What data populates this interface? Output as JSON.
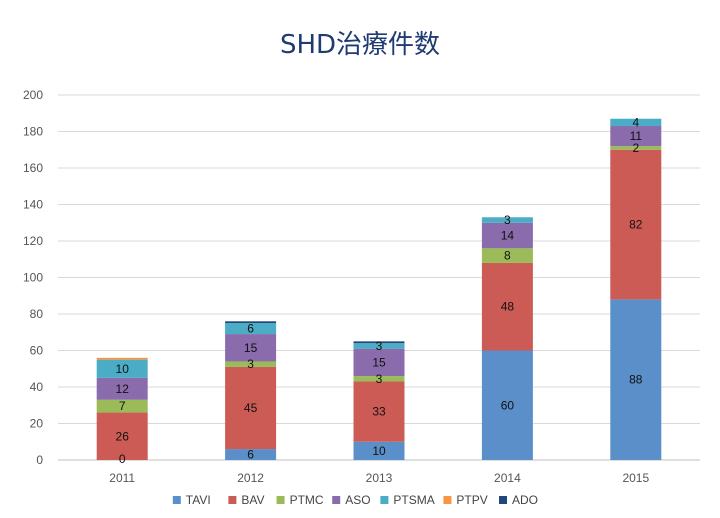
{
  "chart_data": {
    "type": "bar",
    "stacked": true,
    "title": "SHD治療件数",
    "xlabel": "",
    "ylabel": "",
    "categories": [
      "2011",
      "2012",
      "2013",
      "2014",
      "2015"
    ],
    "ylim": [
      0,
      200
    ],
    "yticks": [
      0,
      20,
      40,
      60,
      80,
      100,
      120,
      140,
      160,
      180,
      200
    ],
    "grid": true,
    "legend_position": "bottom",
    "series": [
      {
        "name": "TAVI",
        "color": "#5b8fc9",
        "values": [
          0,
          6,
          10,
          60,
          88
        ],
        "labels": [
          "0",
          "6",
          "10",
          "60",
          "88"
        ]
      },
      {
        "name": "BAV",
        "color": "#cc5b55",
        "values": [
          26,
          45,
          33,
          48,
          82
        ],
        "labels": [
          "26",
          "45",
          "33",
          "48",
          "82"
        ]
      },
      {
        "name": "PTMC",
        "color": "#9bbb59",
        "values": [
          7,
          3,
          3,
          8,
          2
        ],
        "labels": [
          "7",
          "3",
          "3",
          "8",
          "2"
        ]
      },
      {
        "name": "ASO",
        "color": "#8a6bab",
        "values": [
          12,
          15,
          15,
          14,
          11
        ],
        "labels": [
          "12",
          "15",
          "15",
          "14",
          "11"
        ]
      },
      {
        "name": "PTSMA",
        "color": "#4bacc6",
        "values": [
          10,
          6,
          3,
          3,
          4
        ],
        "labels": [
          "10",
          "6",
          "3",
          "3",
          "4"
        ]
      },
      {
        "name": "PTPV",
        "color": "#f79646",
        "values": [
          1,
          0,
          0,
          0,
          0
        ],
        "labels": [
          "",
          "",
          "",
          "",
          ""
        ]
      },
      {
        "name": "ADO",
        "color": "#1f497d",
        "values": [
          0,
          1,
          1,
          0,
          0
        ],
        "labels": [
          "",
          "",
          "",
          "",
          ""
        ]
      }
    ]
  }
}
